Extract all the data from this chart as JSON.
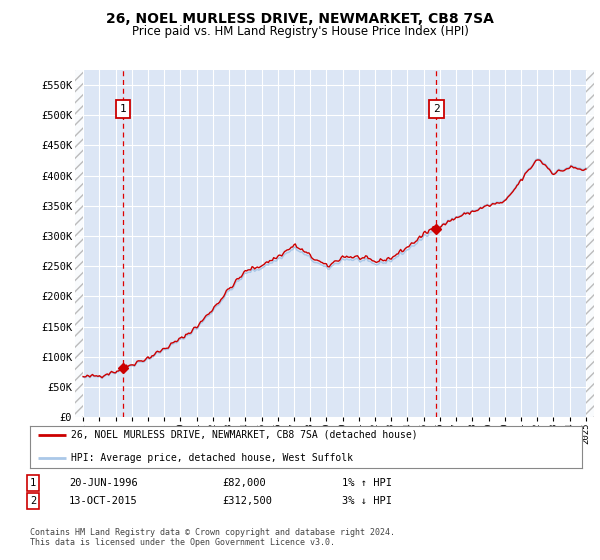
{
  "title": "26, NOEL MURLESS DRIVE, NEWMARKET, CB8 7SA",
  "subtitle": "Price paid vs. HM Land Registry's House Price Index (HPI)",
  "legend_label_red": "26, NOEL MURLESS DRIVE, NEWMARKET, CB8 7SA (detached house)",
  "legend_label_blue": "HPI: Average price, detached house, West Suffolk",
  "annotation1": {
    "label": "1",
    "date": "20-JUN-1996",
    "price": "£82,000",
    "hpi": "1% ↑ HPI",
    "x_year": 1996.47
  },
  "annotation2": {
    "label": "2",
    "date": "13-OCT-2015",
    "price": "£312,500",
    "hpi": "3% ↓ HPI",
    "x_year": 2015.78
  },
  "footer": "Contains HM Land Registry data © Crown copyright and database right 2024.\nThis data is licensed under the Open Government Licence v3.0.",
  "ylim": [
    0,
    575000
  ],
  "yticks": [
    0,
    50000,
    100000,
    150000,
    200000,
    250000,
    300000,
    350000,
    400000,
    450000,
    500000,
    550000
  ],
  "ytick_labels": [
    "£0",
    "£50K",
    "£100K",
    "£150K",
    "£200K",
    "£250K",
    "£300K",
    "£350K",
    "£400K",
    "£450K",
    "£500K",
    "£550K"
  ],
  "xlim": [
    1993.5,
    2025.5
  ],
  "xticks": [
    1994,
    1995,
    1996,
    1997,
    1998,
    1999,
    2000,
    2001,
    2002,
    2003,
    2004,
    2005,
    2006,
    2007,
    2008,
    2009,
    2010,
    2011,
    2012,
    2013,
    2014,
    2015,
    2016,
    2017,
    2018,
    2019,
    2020,
    2021,
    2022,
    2023,
    2024,
    2025
  ],
  "bg_color": "#dce6f5",
  "grid_color": "#ffffff",
  "sale1_x": 1996.47,
  "sale1_y": 82000,
  "sale2_x": 2015.78,
  "sale2_y": 312500,
  "hpi_years": [
    1994.0,
    1994.08,
    1994.17,
    1994.25,
    1994.33,
    1994.42,
    1994.5,
    1994.58,
    1994.67,
    1994.75,
    1994.83,
    1994.92,
    1995.0,
    1995.08,
    1995.17,
    1995.25,
    1995.33,
    1995.42,
    1995.5,
    1995.58,
    1995.67,
    1995.75,
    1995.83,
    1995.92,
    1996.0,
    1996.08,
    1996.17,
    1996.25,
    1996.33,
    1996.42,
    1996.5,
    1996.58,
    1996.67,
    1996.75,
    1996.83,
    1996.92,
    1997.0,
    1997.08,
    1997.17,
    1997.25,
    1997.33,
    1997.42,
    1997.5,
    1997.58,
    1997.67,
    1997.75,
    1997.83,
    1997.92,
    1998.0,
    1998.08,
    1998.17,
    1998.25,
    1998.33,
    1998.42,
    1998.5,
    1998.58,
    1998.67,
    1998.75,
    1998.83,
    1998.92,
    1999.0,
    1999.08,
    1999.17,
    1999.25,
    1999.33,
    1999.42,
    1999.5,
    1999.58,
    1999.67,
    1999.75,
    1999.83,
    1999.92,
    2000.0,
    2000.08,
    2000.17,
    2000.25,
    2000.33,
    2000.42,
    2000.5,
    2000.58,
    2000.67,
    2000.75,
    2000.83,
    2000.92,
    2001.0,
    2001.08,
    2001.17,
    2001.25,
    2001.33,
    2001.42,
    2001.5,
    2001.58,
    2001.67,
    2001.75,
    2001.83,
    2001.92,
    2002.0,
    2002.08,
    2002.17,
    2002.25,
    2002.33,
    2002.42,
    2002.5,
    2002.58,
    2002.67,
    2002.75,
    2002.83,
    2002.92,
    2003.0,
    2003.08,
    2003.17,
    2003.25,
    2003.33,
    2003.42,
    2003.5,
    2003.58,
    2003.67,
    2003.75,
    2003.83,
    2003.92,
    2004.0,
    2004.08,
    2004.17,
    2004.25,
    2004.33,
    2004.42,
    2004.5,
    2004.58,
    2004.67,
    2004.75,
    2004.83,
    2004.92,
    2005.0,
    2005.08,
    2005.17,
    2005.25,
    2005.33,
    2005.42,
    2005.5,
    2005.58,
    2005.67,
    2005.75,
    2005.83,
    2005.92,
    2006.0,
    2006.08,
    2006.17,
    2006.25,
    2006.33,
    2006.42,
    2006.5,
    2006.58,
    2006.67,
    2006.75,
    2006.83,
    2006.92,
    2007.0,
    2007.08,
    2007.17,
    2007.25,
    2007.33,
    2007.42,
    2007.5,
    2007.58,
    2007.67,
    2007.75,
    2007.83,
    2007.92,
    2008.0,
    2008.08,
    2008.17,
    2008.25,
    2008.33,
    2008.42,
    2008.5,
    2008.58,
    2008.67,
    2008.75,
    2008.83,
    2008.92,
    2009.0,
    2009.08,
    2009.17,
    2009.25,
    2009.33,
    2009.42,
    2009.5,
    2009.58,
    2009.67,
    2009.75,
    2009.83,
    2009.92,
    2010.0,
    2010.08,
    2010.17,
    2010.25,
    2010.33,
    2010.42,
    2010.5,
    2010.58,
    2010.67,
    2010.75,
    2010.83,
    2010.92,
    2011.0,
    2011.08,
    2011.17,
    2011.25,
    2011.33,
    2011.42,
    2011.5,
    2011.58,
    2011.67,
    2011.75,
    2011.83,
    2011.92,
    2012.0,
    2012.08,
    2012.17,
    2012.25,
    2012.33,
    2012.42,
    2012.5,
    2012.58,
    2012.67,
    2012.75,
    2012.83,
    2012.92,
    2013.0,
    2013.08,
    2013.17,
    2013.25,
    2013.33,
    2013.42,
    2013.5,
    2013.58,
    2013.67,
    2013.75,
    2013.83,
    2013.92,
    2014.0,
    2014.08,
    2014.17,
    2014.25,
    2014.33,
    2014.42,
    2014.5,
    2014.58,
    2014.67,
    2014.75,
    2014.83,
    2014.92,
    2015.0,
    2015.08,
    2015.17,
    2015.25,
    2015.33,
    2015.42,
    2015.5,
    2015.58,
    2015.67,
    2015.75,
    2015.83,
    2015.92,
    2016.0,
    2016.08,
    2016.17,
    2016.25,
    2016.33,
    2016.42,
    2016.5,
    2016.58,
    2016.67,
    2016.75,
    2016.83,
    2016.92,
    2017.0,
    2017.08,
    2017.17,
    2017.25,
    2017.33,
    2017.42,
    2017.5,
    2017.58,
    2017.67,
    2017.75,
    2017.83,
    2017.92,
    2018.0,
    2018.08,
    2018.17,
    2018.25,
    2018.33,
    2018.42,
    2018.5,
    2018.58,
    2018.67,
    2018.75,
    2018.83,
    2018.92,
    2019.0,
    2019.08,
    2019.17,
    2019.25,
    2019.33,
    2019.42,
    2019.5,
    2019.58,
    2019.67,
    2019.75,
    2019.83,
    2019.92,
    2020.0,
    2020.08,
    2020.17,
    2020.25,
    2020.33,
    2020.42,
    2020.5,
    2020.58,
    2020.67,
    2020.75,
    2020.83,
    2020.92,
    2021.0,
    2021.08,
    2021.17,
    2021.25,
    2021.33,
    2021.42,
    2021.5,
    2021.58,
    2021.67,
    2021.75,
    2021.83,
    2021.92,
    2022.0,
    2022.08,
    2022.17,
    2022.25,
    2022.33,
    2022.42,
    2022.5,
    2022.58,
    2022.67,
    2022.75,
    2022.83,
    2022.92,
    2023.0,
    2023.08,
    2023.17,
    2023.25,
    2023.33,
    2023.42,
    2023.5,
    2023.58,
    2023.67,
    2023.75,
    2023.83,
    2023.92,
    2024.0,
    2024.08,
    2024.17,
    2024.25,
    2024.33,
    2024.42,
    2024.5,
    2024.58,
    2024.67,
    2024.75,
    2024.83,
    2024.92,
    2025.0
  ]
}
